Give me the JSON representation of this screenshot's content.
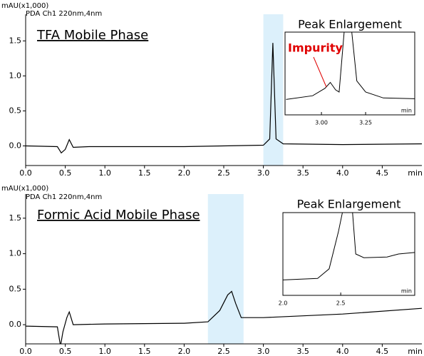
{
  "chart_data": [
    {
      "type": "line",
      "y_label": "mAU(x1,000)",
      "subtitle": "PDA Ch1 220nm,4nm",
      "title": "TFA Mobile Phase",
      "x_unit": "min",
      "xlim": [
        0,
        5
      ],
      "ylim": [
        -0.28,
        1.88
      ],
      "xticks": [
        {
          "value": 0,
          "label": "0.0"
        },
        {
          "value": 0.5,
          "label": "0.5"
        },
        {
          "value": 1,
          "label": "1.0"
        },
        {
          "value": 1.5,
          "label": "1.5"
        },
        {
          "value": 2,
          "label": "2.0"
        },
        {
          "value": 2.5,
          "label": "2.5"
        },
        {
          "value": 3,
          "label": "3.0"
        },
        {
          "value": 3.5,
          "label": "3.5"
        },
        {
          "value": 4,
          "label": "4.0"
        },
        {
          "value": 4.5,
          "label": "4.5"
        }
      ],
      "yticks": [
        {
          "value": 0,
          "label": "0.0"
        },
        0.5,
        {
          "value": 1,
          "label": "1.0"
        },
        1.5
      ],
      "highlight": [
        3.0,
        3.25
      ],
      "color": "#000000",
      "highlight_color": "#dcf0fb",
      "x": [
        0,
        0.4,
        0.45,
        0.5,
        0.55,
        0.6,
        0.8,
        2.0,
        3.0,
        3.08,
        3.12,
        3.16,
        3.25,
        4.0,
        5.0
      ],
      "values": [
        0.0,
        -0.01,
        -0.1,
        -0.05,
        0.09,
        -0.02,
        -0.01,
        -0.01,
        0.01,
        0.1,
        1.47,
        0.1,
        0.03,
        0.02,
        0.03
      ],
      "inset": {
        "title": "Peak Enlargement",
        "annotation": "Impurity",
        "annotation_color": "#e00000",
        "xlim": [
          2.794,
          3.528
        ],
        "ylim": [
          0,
          100
        ],
        "xticks": [
          {
            "value": 3.0,
            "label": "3.00"
          },
          3.25
        ],
        "x_unit": "min",
        "x": [
          2.8,
          2.95,
          3.02,
          3.05,
          3.08,
          3.1,
          3.13,
          3.17,
          3.2,
          3.25,
          3.35,
          3.528
        ],
        "values": [
          15,
          20,
          30,
          38,
          28,
          25,
          110,
          110,
          40,
          25,
          17,
          16
        ]
      }
    },
    {
      "type": "line",
      "y_label": "mAU(x1,000)",
      "subtitle": "PDA Ch1 220nm,4nm",
      "title": "Formic Acid Mobile Phase",
      "x_unit": "min",
      "xlim": [
        0,
        5
      ],
      "ylim": [
        -0.27,
        1.84
      ],
      "xticks": [
        {
          "value": 0,
          "label": "0.0"
        },
        {
          "value": 0.5,
          "label": "0.5"
        },
        {
          "value": 1,
          "label": "1.0"
        },
        {
          "value": 1.5,
          "label": "1.5"
        },
        {
          "value": 2,
          "label": "2.0"
        },
        {
          "value": 2.5,
          "label": "2.5"
        },
        {
          "value": 3,
          "label": "3.0"
        },
        {
          "value": 3.5,
          "label": "3.5"
        },
        {
          "value": 4,
          "label": "4.0"
        },
        {
          "value": 4.5,
          "label": "4.5"
        }
      ],
      "yticks": [
        {
          "value": 0,
          "label": "0.0"
        },
        0.5,
        {
          "value": 1,
          "label": "1.0"
        },
        1.5
      ],
      "highlight": [
        2.3,
        2.75
      ],
      "color": "#000000",
      "highlight_color": "#dcf0fb",
      "x": [
        0,
        0.4,
        0.44,
        0.47,
        0.52,
        0.55,
        0.6,
        1.0,
        2.0,
        2.3,
        2.45,
        2.55,
        2.6,
        2.65,
        2.72,
        3.0,
        4.0,
        5.0
      ],
      "values": [
        -0.02,
        -0.03,
        -0.3,
        -0.1,
        0.1,
        0.18,
        0.0,
        0.01,
        0.02,
        0.04,
        0.2,
        0.42,
        0.47,
        0.3,
        0.1,
        0.1,
        0.15,
        0.23
      ],
      "inset": {
        "title": "Peak Enlargement",
        "xlim": [
          2.0,
          3.14
        ],
        "ylim": [
          0,
          100
        ],
        "xticks": [
          {
            "value": 2.0,
            "label": "2.0"
          },
          2.5
        ],
        "x_unit": "min",
        "x": [
          2.0,
          2.3,
          2.4,
          2.48,
          2.52,
          2.6,
          2.63,
          2.7,
          2.9,
          3.0,
          3.14
        ],
        "values": [
          15,
          17,
          30,
          80,
          110,
          110,
          50,
          45,
          46,
          50,
          52
        ]
      }
    }
  ]
}
